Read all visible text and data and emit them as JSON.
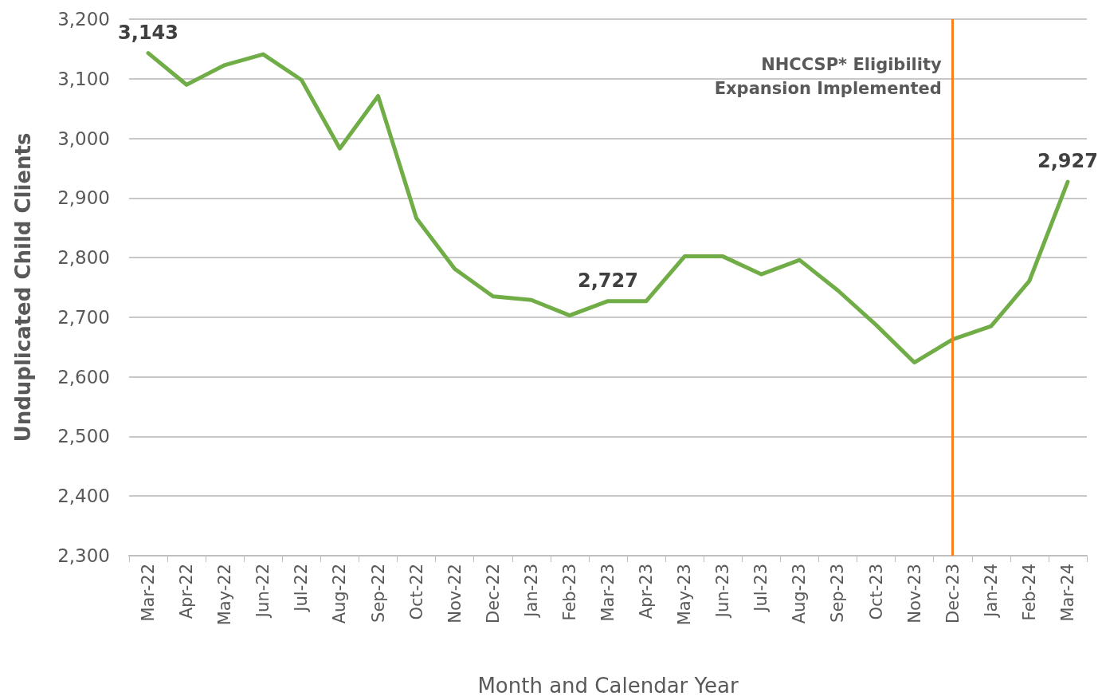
{
  "chart_data": {
    "type": "line",
    "xlabel": "Month and Calendar Year",
    "ylabel": "Unduplicated Child Clients",
    "categories": [
      "Mar-22",
      "Apr-22",
      "May-22",
      "Jun-22",
      "Jul-22",
      "Aug-22",
      "Sep-22",
      "Oct-22",
      "Nov-22",
      "Dec-22",
      "Jan-23",
      "Feb-23",
      "Mar-23",
      "Apr-23",
      "May-23",
      "Jun-23",
      "Jul-23",
      "Aug-23",
      "Sep-23",
      "Oct-23",
      "Nov-23",
      "Dec-23",
      "Jan-24",
      "Feb-24",
      "Mar-24"
    ],
    "series": [
      {
        "color": "#70ad47",
        "values": [
          3143,
          3090,
          3123,
          3141,
          3098,
          2983,
          3071,
          2866,
          2781,
          2735,
          2729,
          2703,
          2727,
          2727,
          2802,
          2802,
          2772,
          2796,
          2745,
          2687,
          2624,
          2663,
          2685,
          2761,
          2927
        ],
        "value_labels": [
          "3,143",
          null,
          null,
          null,
          null,
          null,
          null,
          null,
          null,
          null,
          null,
          null,
          "2,727",
          null,
          null,
          null,
          null,
          null,
          null,
          null,
          null,
          null,
          null,
          null,
          "2,927"
        ]
      }
    ],
    "ylim": [
      2300,
      3200
    ],
    "yticks": [
      {
        "value": 2300,
        "label": "2,300"
      },
      {
        "value": 2400,
        "label": "2,400"
      },
      {
        "value": 2500,
        "label": "2,500"
      },
      {
        "value": 2600,
        "label": "2,600"
      },
      {
        "value": 2700,
        "label": "2,700"
      },
      {
        "value": 2800,
        "label": "2,800"
      },
      {
        "value": 2900,
        "label": "2,900"
      },
      {
        "value": 3000,
        "label": "3,000"
      },
      {
        "value": 3100,
        "label": "3,100"
      },
      {
        "value": 3200,
        "label": "3,200"
      }
    ],
    "grid": "y",
    "marker": "none",
    "line_style": "solid",
    "ref_lines": [
      {
        "axis": "x",
        "value": "Dec-23",
        "label": "NHCCSP* Eligibility\nExpansion Implemented",
        "color": "#f5821f"
      }
    ]
  }
}
